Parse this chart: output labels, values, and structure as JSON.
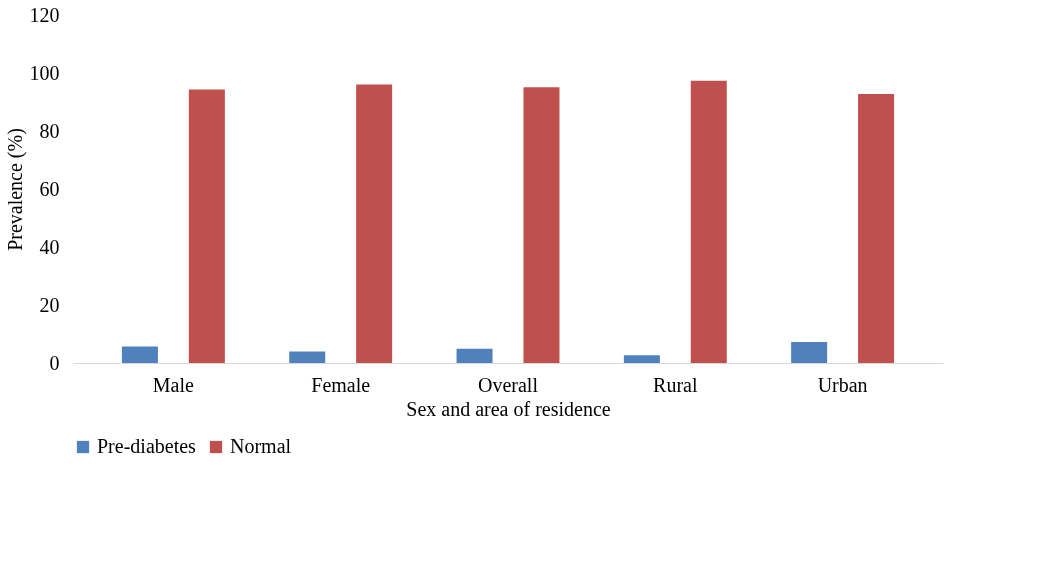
{
  "chart_data": {
    "type": "bar",
    "xlabel": "Sex and area of residence",
    "ylabel": "Prevalence (%)",
    "categories": [
      "Male",
      "Female",
      "Overall",
      "Rural",
      "Urban"
    ],
    "series": [
      {
        "name": "Pre-diabetes",
        "color": "#4f81bd",
        "values": [
          5.7,
          4.0,
          4.9,
          2.7,
          7.2
        ]
      },
      {
        "name": "Normal",
        "color": "#c0504d",
        "values": [
          94.3,
          96.0,
          95.1,
          97.3,
          92.8
        ]
      }
    ],
    "ylim": [
      0,
      120
    ],
    "yticks": [
      0,
      20,
      40,
      60,
      80,
      100,
      120
    ],
    "grid": false,
    "legend": "bottom"
  }
}
